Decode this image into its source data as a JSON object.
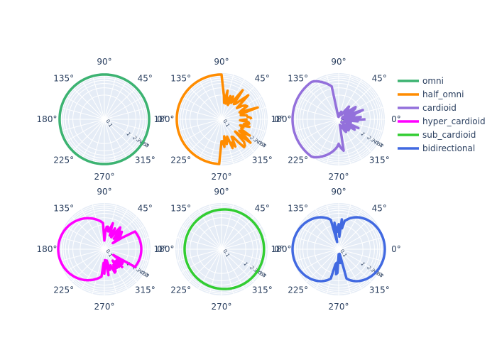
{
  "chart_data": {
    "type": "polar-line",
    "angle_ticks": [
      "0°",
      "45°",
      "90°",
      "135°",
      "180°",
      "225°",
      "270°",
      "315°"
    ],
    "radial_ticks": [
      "0.1",
      "1",
      "2",
      "3",
      "4",
      "5",
      "6",
      "7",
      "8"
    ],
    "radial_scale": "log",
    "grid": true,
    "legend_placement": "right",
    "series": [
      {
        "name": "omni",
        "color": "#3cb371",
        "pattern": "omni"
      },
      {
        "name": "half_omni",
        "color": "#ff8c00",
        "pattern": "half_omni"
      },
      {
        "name": "cardioid",
        "color": "#9370db",
        "pattern": "cardioid"
      },
      {
        "name": "hyper_cardioid",
        "color": "#ff00ff",
        "pattern": "hyper_cardioid"
      },
      {
        "name": "sub_cardioid",
        "color": "#32cd32",
        "pattern": "sub_cardioid"
      },
      {
        "name": "bidirectional",
        "color": "#4169e1",
        "pattern": "bidirectional"
      }
    ]
  }
}
